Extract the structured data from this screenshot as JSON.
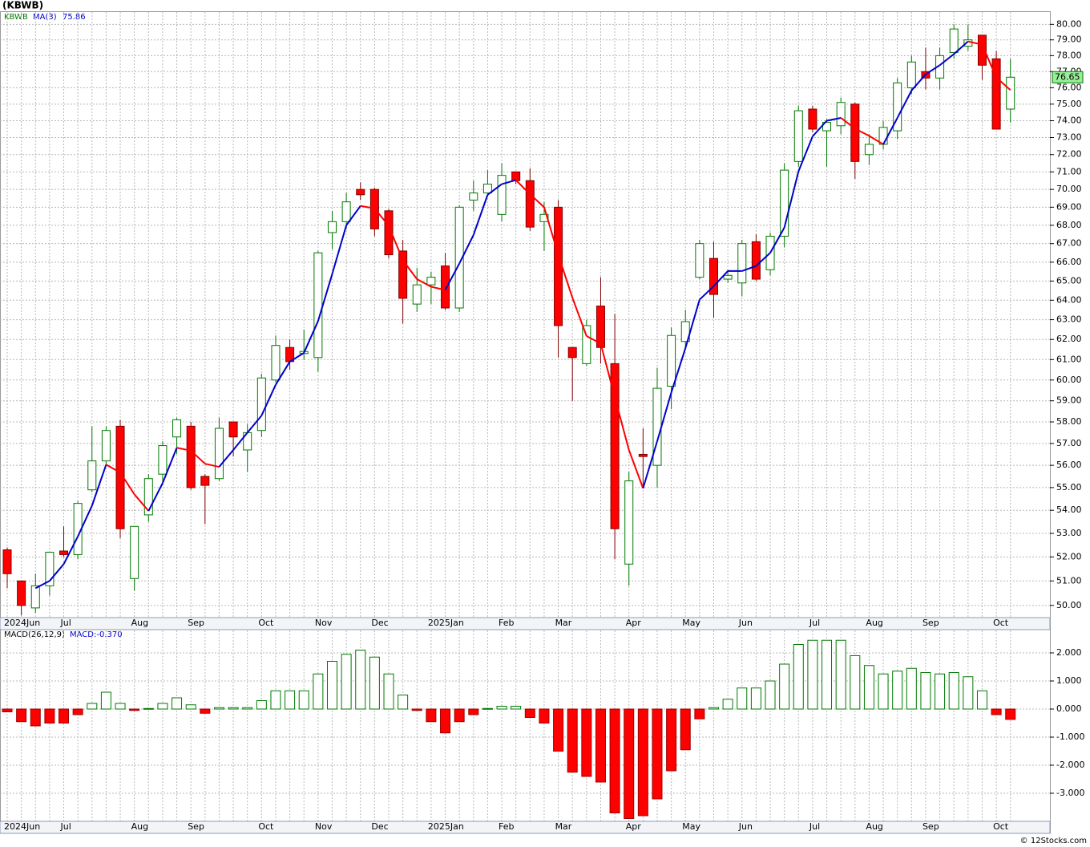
{
  "chart_data": [
    {
      "type": "candlestick",
      "title": "(KBWB)",
      "name": "KBWB",
      "categories": [
        "2024Jun",
        null,
        null,
        null,
        "Jul",
        null,
        null,
        null,
        null,
        "Aug",
        null,
        null,
        null,
        "Sep",
        null,
        null,
        null,
        null,
        "Oct",
        null,
        null,
        null,
        "Nov",
        null,
        null,
        null,
        "Dec",
        null,
        null,
        null,
        "2025Jan",
        null,
        null,
        null,
        null,
        "Feb",
        null,
        null,
        null,
        "Mar",
        null,
        null,
        null,
        null,
        "Apr",
        null,
        null,
        null,
        "May",
        null,
        null,
        null,
        "Jun",
        null,
        null,
        null,
        null,
        "Jul",
        null,
        null,
        null,
        "Aug",
        null,
        null,
        null,
        "Sep",
        null,
        null,
        null,
        null,
        "Oct",
        null
      ],
      "open": [
        52.3,
        51.0,
        49.9,
        50.8,
        52.25,
        52.1,
        54.9,
        56.2,
        57.8,
        51.1,
        53.8,
        55.6,
        57.3,
        57.8,
        55.5,
        55.4,
        58.0,
        56.7,
        57.6,
        60.0,
        61.6,
        61.3,
        61.1,
        67.6,
        68.2,
        70.0,
        70.0,
        68.8,
        66.6,
        63.8,
        64.8,
        65.8,
        63.6,
        69.4,
        69.8,
        68.6,
        71.0,
        70.5,
        68.2,
        69.0,
        61.6,
        60.8,
        63.7,
        60.8,
        51.7,
        56.5,
        56.0,
        59.7,
        61.9,
        65.2,
        66.2,
        65.1,
        64.9,
        67.1,
        65.6,
        67.4,
        71.6,
        74.7,
        73.4,
        73.7,
        75.0,
        72.0,
        72.6,
        73.4,
        76.0,
        77.0,
        76.6,
        78.2,
        78.6,
        79.3,
        77.8,
        74.7
      ],
      "high": [
        52.4,
        51.0,
        51.3,
        52.2,
        53.3,
        54.4,
        57.8,
        57.8,
        58.1,
        53.3,
        55.6,
        57.1,
        58.2,
        58.0,
        55.6,
        58.2,
        58.0,
        57.9,
        60.3,
        62.2,
        62.0,
        62.5,
        66.6,
        68.8,
        69.8,
        70.4,
        70.1,
        68.9,
        67.2,
        65.7,
        65.5,
        66.5,
        69.1,
        70.5,
        71.1,
        71.5,
        71.0,
        71.2,
        69.3,
        69.4,
        61.6,
        63.0,
        65.2,
        63.3,
        55.7,
        57.7,
        60.6,
        62.6,
        63.5,
        67.2,
        67.1,
        65.6,
        67.2,
        67.5,
        67.6,
        71.5,
        74.9,
        74.9,
        74.1,
        75.4,
        75.1,
        73.2,
        74.0,
        76.6,
        78.0,
        78.5,
        78.5,
        80.0,
        80.0,
        79.3,
        78.3,
        77.8
      ],
      "low": [
        50.7,
        49.6,
        49.7,
        50.4,
        52.0,
        51.9,
        54.8,
        56.0,
        52.8,
        50.6,
        53.5,
        55.1,
        56.5,
        54.9,
        53.4,
        55.3,
        56.4,
        55.7,
        57.3,
        59.9,
        60.5,
        61.0,
        60.4,
        66.7,
        67.8,
        69.4,
        67.4,
        66.2,
        62.8,
        63.4,
        63.8,
        63.5,
        63.4,
        68.8,
        69.6,
        68.2,
        70.3,
        67.7,
        66.6,
        61.1,
        59.0,
        60.7,
        60.8,
        51.9,
        50.8,
        55.1,
        55.0,
        58.6,
        61.5,
        65.1,
        63.1,
        64.9,
        64.2,
        65.0,
        65.3,
        66.8,
        71.3,
        73.3,
        71.3,
        73.2,
        70.6,
        71.4,
        72.3,
        72.9,
        75.6,
        75.9,
        75.9,
        77.8,
        78.3,
        76.5,
        73.5,
        73.9
      ],
      "close": [
        51.3,
        50.0,
        50.8,
        52.2,
        52.1,
        54.3,
        56.2,
        57.6,
        53.2,
        53.3,
        55.4,
        56.9,
        58.1,
        55.0,
        55.1,
        57.7,
        57.3,
        57.5,
        60.1,
        61.7,
        60.9,
        61.4,
        66.5,
        68.2,
        69.3,
        69.7,
        67.8,
        66.4,
        64.1,
        64.8,
        65.2,
        63.6,
        69.0,
        69.8,
        70.3,
        70.8,
        70.5,
        67.9,
        68.6,
        62.7,
        61.1,
        62.7,
        61.6,
        53.2,
        55.3,
        56.4,
        59.6,
        62.2,
        62.9,
        67.0,
        64.3,
        65.3,
        67.0,
        65.1,
        67.4,
        71.1,
        74.6,
        73.5,
        73.9,
        75.1,
        71.6,
        72.6,
        73.6,
        76.3,
        77.6,
        76.6,
        78.0,
        79.7,
        79.0,
        77.4,
        73.5,
        76.65
      ],
      "up_color": "#007a00",
      "down_color": "#ff0000",
      "ma": {
        "name": "MA(3)",
        "up_color": "#0000cc",
        "down_color": "#ff0000",
        "values": [
          null,
          null,
          50.7,
          51.0,
          51.7,
          52.87,
          54.2,
          56.03,
          55.67,
          54.7,
          53.97,
          55.2,
          56.8,
          56.67,
          56.07,
          55.93,
          56.7,
          57.5,
          58.3,
          59.77,
          60.9,
          61.33,
          62.93,
          65.37,
          68.0,
          69.07,
          68.93,
          67.97,
          66.1,
          65.1,
          64.7,
          64.53,
          65.93,
          67.47,
          69.7,
          70.3,
          70.53,
          69.73,
          69.0,
          66.4,
          64.13,
          62.17,
          61.8,
          59.17,
          56.7,
          54.97,
          57.1,
          59.4,
          61.57,
          64.03,
          64.73,
          65.53,
          65.53,
          65.8,
          66.5,
          67.87,
          71.03,
          73.07,
          74.0,
          74.17,
          73.53,
          73.1,
          72.6,
          74.17,
          75.83,
          76.83,
          77.4,
          78.1,
          78.9,
          78.7,
          76.63,
          75.86
        ]
      },
      "ylim": [
        49.51,
        80.8
      ],
      "log_scale": true,
      "grid": true,
      "yticks": [
        {
          "value": 50,
          "label": "50.00"
        },
        {
          "value": 51,
          "label": "51.00"
        },
        {
          "value": 52,
          "label": "52.00"
        },
        {
          "value": 53,
          "label": "53.00"
        },
        {
          "value": 54,
          "label": "54.00"
        },
        {
          "value": 55,
          "label": "55.00"
        },
        {
          "value": 56,
          "label": "56.00"
        },
        {
          "value": 57,
          "label": "57.00"
        },
        {
          "value": 58,
          "label": "58.00"
        },
        {
          "value": 59,
          "label": "59.00"
        },
        {
          "value": 60,
          "label": "60.00"
        },
        {
          "value": 61,
          "label": "61.00"
        },
        {
          "value": 62,
          "label": "62.00"
        },
        {
          "value": 63,
          "label": "63.00"
        },
        {
          "value": 64,
          "label": "64.00"
        },
        {
          "value": 65,
          "label": "65.00"
        },
        {
          "value": 66,
          "label": "66.00"
        },
        {
          "value": 67,
          "label": "67.00"
        },
        {
          "value": 68,
          "label": "68.00"
        },
        {
          "value": 69,
          "label": "69.00"
        },
        {
          "value": 70,
          "label": "70.00"
        },
        {
          "value": 71,
          "label": "71.00"
        },
        {
          "value": 72,
          "label": "72.00"
        },
        {
          "value": 73,
          "label": "73.00"
        },
        {
          "value": 74,
          "label": "74.00"
        },
        {
          "value": 75,
          "label": "75.00"
        },
        {
          "value": 76,
          "label": "76.00"
        },
        {
          "value": 77,
          "label": "77.00"
        },
        {
          "value": 78,
          "label": "78.00"
        },
        {
          "value": 79,
          "label": "79.00"
        },
        {
          "value": 80,
          "label": "80.00"
        }
      ]
    },
    {
      "type": "bar",
      "title": "MACD(26,12,9)",
      "value_label": "MACD:-0.370",
      "categories": [
        "2024Jun",
        null,
        null,
        null,
        "Jul",
        null,
        null,
        null,
        null,
        "Aug",
        null,
        null,
        null,
        "Sep",
        null,
        null,
        null,
        null,
        "Oct",
        null,
        null,
        null,
        "Nov",
        null,
        null,
        null,
        "Dec",
        null,
        null,
        null,
        "2025Jan",
        null,
        null,
        null,
        null,
        "Feb",
        null,
        null,
        null,
        "Mar",
        null,
        null,
        null,
        null,
        "Apr",
        null,
        null,
        null,
        "May",
        null,
        null,
        null,
        "Jun",
        null,
        null,
        null,
        null,
        "Jul",
        null,
        null,
        null,
        "Aug",
        null,
        null,
        null,
        "Sep",
        null,
        null,
        null,
        null,
        "Oct",
        null
      ],
      "values": [
        -0.1,
        -0.45,
        -0.6,
        -0.5,
        -0.5,
        -0.2,
        0.2,
        0.6,
        0.2,
        -0.05,
        0.02,
        0.2,
        0.4,
        0.15,
        -0.15,
        0.05,
        0.05,
        0.05,
        0.3,
        0.65,
        0.65,
        0.65,
        1.25,
        1.7,
        1.95,
        2.1,
        1.85,
        1.25,
        0.5,
        -0.05,
        -0.45,
        -0.85,
        -0.45,
        -0.2,
        0.02,
        0.1,
        0.1,
        -0.3,
        -0.5,
        -1.5,
        -2.25,
        -2.4,
        -2.6,
        -3.7,
        -3.9,
        -3.8,
        -3.2,
        -2.2,
        -1.45,
        -0.35,
        0.05,
        0.35,
        0.75,
        0.75,
        1.0,
        1.6,
        2.3,
        2.45,
        2.45,
        2.45,
        1.9,
        1.55,
        1.25,
        1.35,
        1.45,
        1.3,
        1.25,
        1.3,
        1.15,
        0.65,
        -0.2,
        -0.37
      ],
      "positive_color": "#007a00",
      "negative_color": "#ff0000",
      "ylim": [
        -4.0,
        2.8
      ],
      "grid": true,
      "yticks": [
        {
          "value": 2,
          "label": "2.000"
        },
        {
          "value": 1,
          "label": "1.000"
        },
        {
          "value": 0,
          "label": "0.000"
        },
        {
          "value": -1,
          "label": "-1.000"
        },
        {
          "value": -2,
          "label": "-2.000"
        },
        {
          "value": -3,
          "label": "-3.000"
        }
      ]
    }
  ],
  "credit": "© 12Stocks.com"
}
